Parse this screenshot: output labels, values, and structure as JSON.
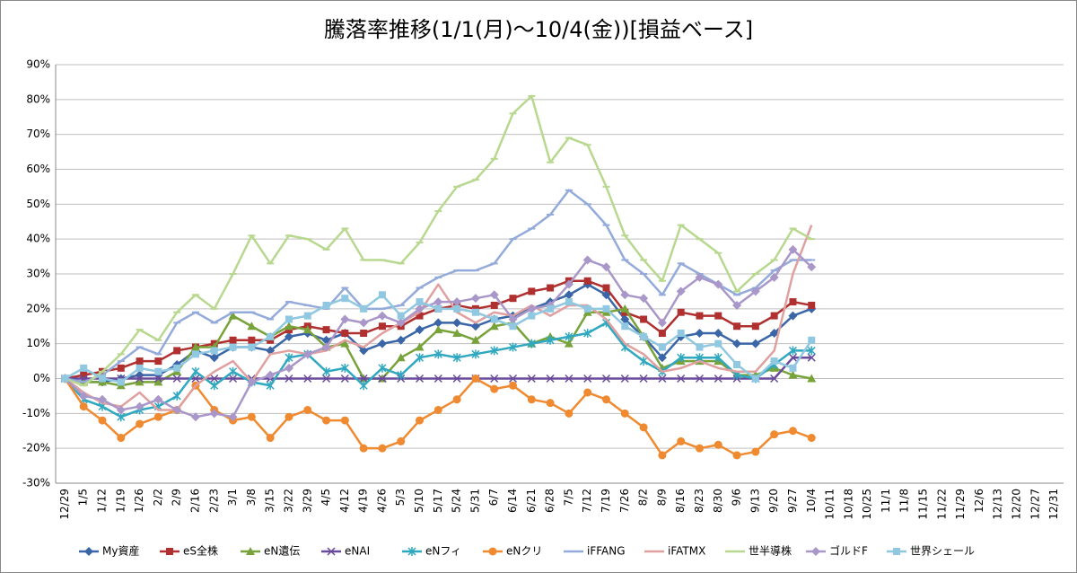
{
  "chart_data": {
    "type": "line",
    "title": "騰落率推移(1/1(月)～10/4(金))[損益ベース]",
    "categories": [
      "12/29",
      "1/5",
      "1/12",
      "1/19",
      "1/26",
      "2/2",
      "2/9",
      "2/16",
      "2/23",
      "3/1",
      "3/8",
      "3/15",
      "3/22",
      "3/29",
      "4/5",
      "4/12",
      "4/19",
      "4/26",
      "5/3",
      "5/10",
      "5/17",
      "5/24",
      "5/31",
      "6/7",
      "6/14",
      "6/21",
      "6/28",
      "7/5",
      "7/12",
      "7/19",
      "7/26",
      "8/2",
      "8/9",
      "8/16",
      "8/23",
      "8/30",
      "9/6",
      "9/13",
      "9/20",
      "9/27",
      "10/4",
      "10/11",
      "10/18",
      "10/25",
      "11/1",
      "11/8",
      "11/15",
      "11/22",
      "11/29",
      "12/6",
      "12/13",
      "12/20",
      "12/27",
      "12/31"
    ],
    "ylim": [
      -30,
      90
    ],
    "yticks": [
      {
        "value": -30,
        "label": "-30%"
      },
      {
        "value": -20,
        "label": "-20%"
      },
      {
        "value": -10,
        "label": "-10%"
      },
      {
        "value": 0,
        "label": "0%"
      },
      {
        "value": 10,
        "label": "10%"
      },
      {
        "value": 20,
        "label": "20%"
      },
      {
        "value": 30,
        "label": "30%"
      },
      {
        "value": 40,
        "label": "40%"
      },
      {
        "value": 50,
        "label": "50%"
      },
      {
        "value": 60,
        "label": "60%"
      },
      {
        "value": 70,
        "label": "70%"
      },
      {
        "value": 80,
        "label": "80%"
      },
      {
        "value": 90,
        "label": "90%"
      }
    ],
    "grid": true,
    "legend": "bottom",
    "series": [
      {
        "name": "My資産",
        "color": "#3a66a8",
        "marker": "diamond",
        "values": [
          0,
          -1,
          -1,
          0,
          1,
          1,
          4,
          8,
          6,
          9,
          9,
          8,
          12,
          13,
          11,
          13,
          8,
          10,
          11,
          14,
          16,
          16,
          15,
          17,
          18,
          20,
          22,
          24,
          27,
          24,
          17,
          12,
          6,
          12,
          13,
          13,
          10,
          10,
          13,
          18,
          20,
          null,
          null,
          null,
          null,
          null,
          null,
          null,
          null,
          null,
          null,
          null,
          null,
          null
        ]
      },
      {
        "name": "eS全株",
        "color": "#b03030",
        "marker": "square",
        "values": [
          0,
          1,
          2,
          3,
          5,
          5,
          8,
          9,
          10,
          11,
          11,
          11,
          14,
          15,
          14,
          13,
          13,
          15,
          15,
          18,
          20,
          21,
          20,
          21,
          23,
          25,
          26,
          28,
          28,
          26,
          19,
          17,
          13,
          19,
          18,
          18,
          15,
          15,
          18,
          22,
          21,
          null,
          null,
          null,
          null,
          null,
          null,
          null,
          null,
          null,
          null,
          null,
          null,
          null
        ]
      },
      {
        "name": "eN遺伝",
        "color": "#77a33a",
        "marker": "triangle",
        "values": [
          0,
          -1,
          -1,
          -2,
          -1,
          -1,
          2,
          9,
          9,
          18,
          15,
          12,
          15,
          14,
          9,
          10,
          0,
          0,
          6,
          9,
          14,
          13,
          11,
          15,
          16,
          10,
          12,
          10,
          19,
          19,
          20,
          12,
          3,
          5,
          5,
          5,
          1,
          1,
          3,
          1,
          0,
          null,
          null,
          null,
          null,
          null,
          null,
          null,
          null,
          null,
          null,
          null,
          null,
          null
        ]
      },
      {
        "name": "eNAI",
        "color": "#6a4a9a",
        "marker": "x",
        "values": [
          0,
          0,
          0,
          0,
          0,
          0,
          0,
          0,
          0,
          0,
          0,
          0,
          0,
          0,
          0,
          0,
          0,
          0,
          0,
          0,
          0,
          0,
          0,
          0,
          0,
          0,
          0,
          0,
          0,
          0,
          0,
          0,
          0,
          0,
          0,
          0,
          0,
          0,
          0,
          6,
          6,
          null,
          null,
          null,
          null,
          null,
          null,
          null,
          null,
          null,
          null,
          null,
          null,
          null
        ]
      },
      {
        "name": "eNフィ",
        "color": "#30a8c0",
        "marker": "star",
        "values": [
          0,
          -6,
          -8,
          -11,
          -9,
          -8,
          -5,
          2,
          -2,
          2,
          -1,
          -2,
          6,
          7,
          2,
          3,
          -2,
          3,
          1,
          6,
          7,
          6,
          7,
          8,
          9,
          10,
          11,
          12,
          13,
          16,
          9,
          5,
          2,
          6,
          6,
          6,
          1,
          0,
          4,
          8,
          8,
          null,
          null,
          null,
          null,
          null,
          null,
          null,
          null,
          null,
          null,
          null,
          null,
          null
        ]
      },
      {
        "name": "eNクリ",
        "color": "#f08a30",
        "marker": "circle",
        "values": [
          0,
          -8,
          -12,
          -17,
          -13,
          -11,
          -9,
          -2,
          -9,
          -12,
          -11,
          -17,
          -11,
          -9,
          -12,
          -12,
          -20,
          -20,
          -18,
          -12,
          -9,
          -6,
          0,
          -3,
          -2,
          -6,
          -7,
          -10,
          -4,
          -6,
          -10,
          -14,
          -22,
          -18,
          -20,
          -19,
          -22,
          -21,
          -16,
          -15,
          -17,
          null,
          null,
          null,
          null,
          null,
          null,
          null,
          null,
          null,
          null,
          null,
          null,
          null
        ]
      },
      {
        "name": "iFFANG",
        "color": "#93aadb",
        "marker": "dash",
        "values": [
          0,
          -1,
          1,
          5,
          9,
          7,
          16,
          19,
          16,
          19,
          19,
          17,
          22,
          21,
          20,
          26,
          20,
          20,
          21,
          26,
          29,
          31,
          31,
          33,
          40,
          43,
          47,
          54,
          50,
          44,
          34,
          30,
          24,
          33,
          30,
          27,
          24,
          26,
          31,
          34,
          34,
          null,
          null,
          null,
          null,
          null,
          null,
          null,
          null,
          null,
          null,
          null,
          null,
          null
        ]
      },
      {
        "name": "iFATMX",
        "color": "#e0a0a0",
        "marker": "none",
        "values": [
          0,
          -4,
          -7,
          -8,
          -4,
          -9,
          -9,
          -2,
          2,
          5,
          -1,
          7,
          8,
          7,
          8,
          11,
          9,
          13,
          16,
          19,
          27,
          19,
          16,
          19,
          18,
          21,
          18,
          21,
          21,
          17,
          10,
          7,
          2,
          3,
          5,
          3,
          2,
          2,
          8,
          30,
          44,
          null,
          null,
          null,
          null,
          null,
          null,
          null,
          null,
          null,
          null,
          null,
          null,
          null
        ]
      },
      {
        "name": "世半導株",
        "color": "#b8d890",
        "marker": "dash",
        "values": [
          0,
          -2,
          2,
          7,
          14,
          11,
          19,
          24,
          20,
          30,
          41,
          33,
          41,
          40,
          37,
          43,
          34,
          34,
          33,
          39,
          48,
          55,
          57,
          63,
          76,
          81,
          62,
          69,
          67,
          55,
          41,
          34,
          28,
          44,
          40,
          36,
          25,
          30,
          34,
          43,
          40,
          null,
          null,
          null,
          null,
          null,
          null,
          null,
          null,
          null,
          null,
          null,
          null,
          null
        ]
      },
      {
        "name": "ゴルドF",
        "color": "#a997c9",
        "marker": "diamond",
        "values": [
          0,
          -5,
          -6,
          -9,
          -8,
          -6,
          -9,
          -11,
          -10,
          -11,
          -1,
          1,
          3,
          7,
          9,
          17,
          16,
          18,
          16,
          20,
          22,
          22,
          23,
          24,
          17,
          20,
          21,
          27,
          34,
          32,
          24,
          23,
          16,
          25,
          29,
          27,
          21,
          25,
          29,
          37,
          32,
          null,
          null,
          null,
          null,
          null,
          null,
          null,
          null,
          null,
          null,
          null,
          null,
          null
        ]
      },
      {
        "name": "世界シェール",
        "color": "#8fc8e0",
        "marker": "square",
        "values": [
          0,
          3,
          0,
          -1,
          3,
          2,
          3,
          7,
          8,
          9,
          9,
          12,
          17,
          18,
          21,
          23,
          20,
          24,
          18,
          22,
          20,
          20,
          19,
          17,
          15,
          18,
          20,
          22,
          20,
          20,
          15,
          12,
          9,
          13,
          9,
          10,
          4,
          0,
          5,
          3,
          11,
          null,
          null,
          null,
          null,
          null,
          null,
          null,
          null,
          null,
          null,
          null,
          null,
          null
        ]
      }
    ]
  }
}
